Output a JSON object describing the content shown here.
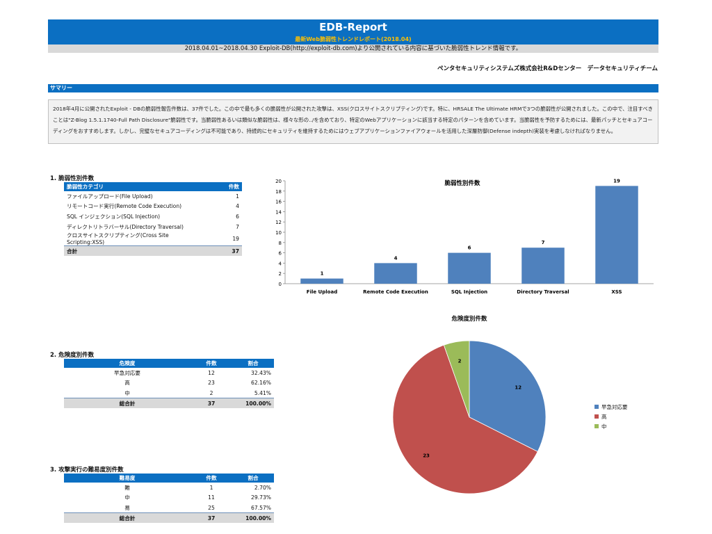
{
  "report": {
    "title": "EDB-Report",
    "subtitle": "最新Web脆弱性トレンドレポート(2018.04)",
    "period": "2018.04.01~2018.04.30 Exploit-DB(http://exploit-db.com)より公開されている内容に基づいた脆弱性トレンド情報です。",
    "org": "ペンタセキュリティシステムズ株式会社R&Dセンター　データセキュリティチーム"
  },
  "summary": {
    "heading": "サマリー",
    "body": "2018年4月に公開されたExploit - DBの脆弱性報告件数は、37件でした。この中で最も多くの脆弱性が公開された攻撃は、XSS(クロスサイトスクリプティング)です。特に、HRSALE The Ultimate HRMで3つの脆弱性が公開されました。この中で、注目すべきことは\"Z-Blog 1.5.1.1740-Full Path Disclosure\"脆弱性です。当脆弱性あるいは類似な脆弱性は、様々な形の../を含めており、特定のWebアプリケーションに該当する特定のパターンを含めています。当脆弱性を予防するためには、最新パッチとセキュアコーディングをおすすめします。しかし、完璧なセキュアコーディングは不可能であり、持続的にセキュリティを維持するためにはウェブアプリケーションファイアウォールを活用した深層防御(Defense indepth)実装を考慮しなければなりません。"
  },
  "section1": {
    "title": "1. 脆弱性別件数",
    "col_category": "脆弱性カテゴリ",
    "col_count": "件数",
    "rows": [
      {
        "label": "ファイルアップロード(File Upload)",
        "count": "1"
      },
      {
        "label": "リモートコード実行(Remote Code Execution)",
        "count": "4"
      },
      {
        "label": "SQL インジェクション(SQL Injection)",
        "count": "6"
      },
      {
        "label": "ディレクトリトラバーサル(Directory Traversal)",
        "count": "7"
      },
      {
        "label": "クロスサイトスクリプティング(Cross Site Scripting:XSS)",
        "count": "19"
      }
    ],
    "total_label": "合計",
    "total_count": "37"
  },
  "section2": {
    "title": "2. 危険度別件数",
    "col_level": "危険度",
    "col_count": "件数",
    "col_ratio": "割合",
    "rows": [
      {
        "label": "早急対応要",
        "count": "12",
        "ratio": "32.43%"
      },
      {
        "label": "高",
        "count": "23",
        "ratio": "62.16%"
      },
      {
        "label": "中",
        "count": "2",
        "ratio": "5.41%"
      }
    ],
    "total_label": "総合計",
    "total_count": "37",
    "total_ratio": "100.00%"
  },
  "section3": {
    "title": "3. 攻撃実行の難易度別件数",
    "col_level": "難易度",
    "col_count": "件数",
    "col_ratio": "割合",
    "rows": [
      {
        "label": "難",
        "count": "1",
        "ratio": "2.70%"
      },
      {
        "label": "中",
        "count": "11",
        "ratio": "29.73%"
      },
      {
        "label": "易",
        "count": "25",
        "ratio": "67.57%"
      }
    ],
    "total_label": "総合計",
    "total_count": "37",
    "total_ratio": "100.00%"
  },
  "colors": {
    "header_blue": "#0b6fc2",
    "subtitle_gold": "#ffc000",
    "bar_blue": "#4f81bd",
    "pie_red": "#c0504d",
    "pie_green": "#9bbb59"
  },
  "chart_data": [
    {
      "type": "bar",
      "title": "脆弱性別件数",
      "categories": [
        "File Upload",
        "Remote Code Execution",
        "SQL Injection",
        "Directory Traversal",
        "XSS"
      ],
      "values": [
        1,
        4,
        6,
        7,
        19
      ],
      "ylim": [
        0,
        20
      ],
      "yticks": [
        0,
        2,
        4,
        6,
        8,
        10,
        12,
        14,
        16,
        18,
        20
      ],
      "data_labels": true,
      "grid": false,
      "color": "#4f81bd"
    },
    {
      "type": "pie",
      "title": "危険度別件数",
      "labels": [
        "早急対応要",
        "高",
        "中"
      ],
      "values": [
        12,
        23,
        2
      ],
      "colors": [
        "#4f81bd",
        "#c0504d",
        "#9bbb59"
      ],
      "legend": "right"
    }
  ]
}
